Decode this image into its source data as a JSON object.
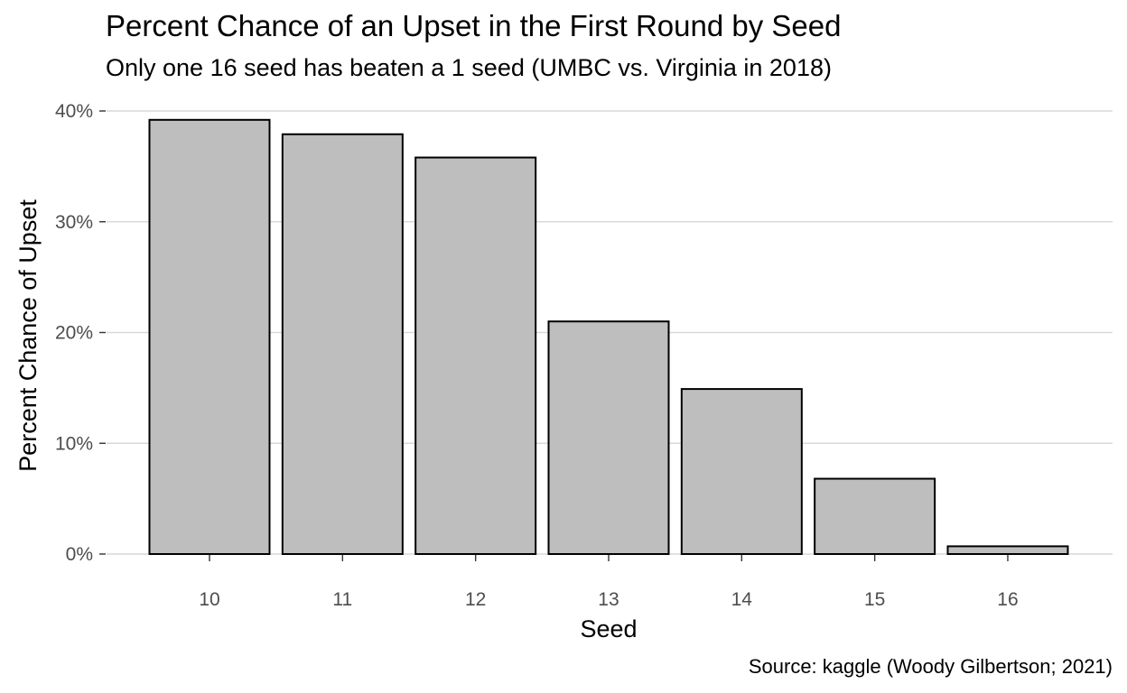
{
  "chart_data": {
    "type": "bar",
    "title": "Percent Chance of an Upset in the First Round by Seed",
    "subtitle": "Only one 16 seed has beaten a 1 seed (UMBC vs. Virginia in 2018)",
    "caption": "Source: kaggle (Woody Gilbertson; 2021)",
    "xlabel": "Seed",
    "ylabel": "Percent Chance of Upset",
    "categories": [
      "10",
      "11",
      "12",
      "13",
      "14",
      "15",
      "16"
    ],
    "values": [
      39.2,
      37.9,
      35.8,
      21.0,
      14.9,
      6.8,
      0.7
    ],
    "ylim": [
      0,
      40
    ],
    "yticks": [
      0,
      10,
      20,
      30,
      40
    ],
    "ytick_labels": [
      "0%",
      "10%",
      "20%",
      "30%",
      "40%"
    ],
    "grid": "horizontal",
    "bar_fill": "#bebebe",
    "bar_stroke": "#000000",
    "gridline_color": "#d9d9d9"
  }
}
